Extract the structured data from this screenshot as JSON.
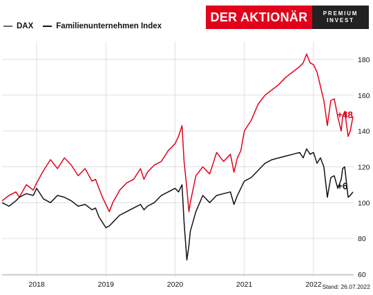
{
  "legend": {
    "dax_label": "DAX",
    "family_label": "Familienunternehmen Index"
  },
  "logo": {
    "brand_text": "DER AKTIONÄR",
    "premium_line1": "PREMIUM",
    "premium_line2": "INVEST"
  },
  "stand_label": "Stand: 26.07.2022",
  "colors": {
    "family": "#e2001a",
    "dax": "#111111",
    "grid": "#d8d8d8"
  },
  "chart_data": {
    "type": "line",
    "title": "",
    "xlabel": "",
    "ylabel": "",
    "ylim": [
      60,
      190
    ],
    "yticks": [
      60,
      80,
      100,
      120,
      140,
      160,
      180
    ],
    "xlim": [
      2017.5,
      2022.58
    ],
    "xticks": [
      {
        "value": 2018,
        "label": "2018"
      },
      {
        "value": 2019,
        "label": "2019"
      },
      {
        "value": 2020,
        "label": "2020"
      },
      {
        "value": 2021,
        "label": "2021"
      },
      {
        "value": 2022,
        "label": "2022"
      }
    ],
    "series": [
      {
        "name": "Familienunternehmen Index",
        "color": "#e2001a",
        "end_label": "+48",
        "x": [
          2017.5,
          2017.6,
          2017.7,
          2017.75,
          2017.85,
          2017.95,
          2018.0,
          2018.1,
          2018.2,
          2018.3,
          2018.4,
          2018.5,
          2018.6,
          2018.7,
          2018.8,
          2018.85,
          2018.9,
          2018.95,
          2019.0,
          2019.05,
          2019.1,
          2019.2,
          2019.3,
          2019.4,
          2019.5,
          2019.55,
          2019.6,
          2019.7,
          2019.8,
          2019.9,
          2020.0,
          2020.05,
          2020.1,
          2020.13,
          2020.17,
          2020.2,
          2020.22,
          2020.3,
          2020.4,
          2020.5,
          2020.6,
          2020.7,
          2020.8,
          2020.85,
          2020.9,
          2020.95,
          2021.0,
          2021.1,
          2021.2,
          2021.3,
          2021.4,
          2021.5,
          2021.6,
          2021.7,
          2021.8,
          2021.85,
          2021.9,
          2021.95,
          2022.0,
          2022.05,
          2022.1,
          2022.15,
          2022.2,
          2022.25,
          2022.3,
          2022.35,
          2022.4,
          2022.42,
          2022.45,
          2022.5,
          2022.53,
          2022.57
        ],
        "values": [
          101,
          104,
          106,
          103,
          110,
          107,
          111,
          118,
          124,
          119,
          125,
          121,
          115,
          119,
          112,
          113,
          108,
          103,
          99,
          95,
          100,
          107,
          111,
          113,
          119,
          113,
          117,
          121,
          123,
          129,
          133,
          137,
          143,
          123,
          108,
          95,
          100,
          115,
          120,
          116,
          128,
          123,
          127,
          117,
          125,
          129,
          140,
          146,
          155,
          160,
          163,
          166,
          170,
          173,
          176,
          178,
          183,
          178,
          177,
          173,
          165,
          157,
          143,
          157,
          158,
          148,
          140,
          148,
          151,
          137,
          140,
          148
        ]
      },
      {
        "name": "DAX",
        "color": "#111111",
        "end_label": "+6",
        "x": [
          2017.5,
          2017.6,
          2017.7,
          2017.75,
          2017.85,
          2017.95,
          2018.0,
          2018.1,
          2018.2,
          2018.3,
          2018.4,
          2018.5,
          2018.6,
          2018.7,
          2018.8,
          2018.85,
          2018.9,
          2018.95,
          2019.0,
          2019.05,
          2019.1,
          2019.2,
          2019.3,
          2019.4,
          2019.5,
          2019.55,
          2019.6,
          2019.7,
          2019.8,
          2019.9,
          2020.0,
          2020.05,
          2020.1,
          2020.13,
          2020.17,
          2020.2,
          2020.22,
          2020.3,
          2020.4,
          2020.5,
          2020.6,
          2020.7,
          2020.8,
          2020.85,
          2020.9,
          2020.95,
          2021.0,
          2021.1,
          2021.2,
          2021.3,
          2021.4,
          2021.5,
          2021.6,
          2021.7,
          2021.8,
          2021.85,
          2021.9,
          2021.95,
          2022.0,
          2022.05,
          2022.1,
          2022.15,
          2022.2,
          2022.25,
          2022.3,
          2022.35,
          2022.4,
          2022.42,
          2022.45,
          2022.5,
          2022.53,
          2022.57
        ],
        "values": [
          100,
          98,
          101,
          103,
          105,
          104,
          108,
          102,
          100,
          104,
          103,
          101,
          98,
          99,
          96,
          97,
          92,
          89,
          86,
          87,
          89,
          93,
          95,
          97,
          99,
          96,
          98,
          100,
          104,
          106,
          108,
          106,
          110,
          89,
          68,
          76,
          84,
          95,
          104,
          100,
          104,
          105,
          106,
          99,
          104,
          108,
          112,
          114,
          118,
          122,
          124,
          125,
          126,
          127,
          128,
          125,
          130,
          127,
          128,
          122,
          125,
          120,
          103,
          114,
          115,
          108,
          113,
          119,
          120,
          103,
          104,
          106
        ]
      }
    ],
    "grid": true,
    "legend_position": "top-left",
    "y_axis_side": "right"
  }
}
